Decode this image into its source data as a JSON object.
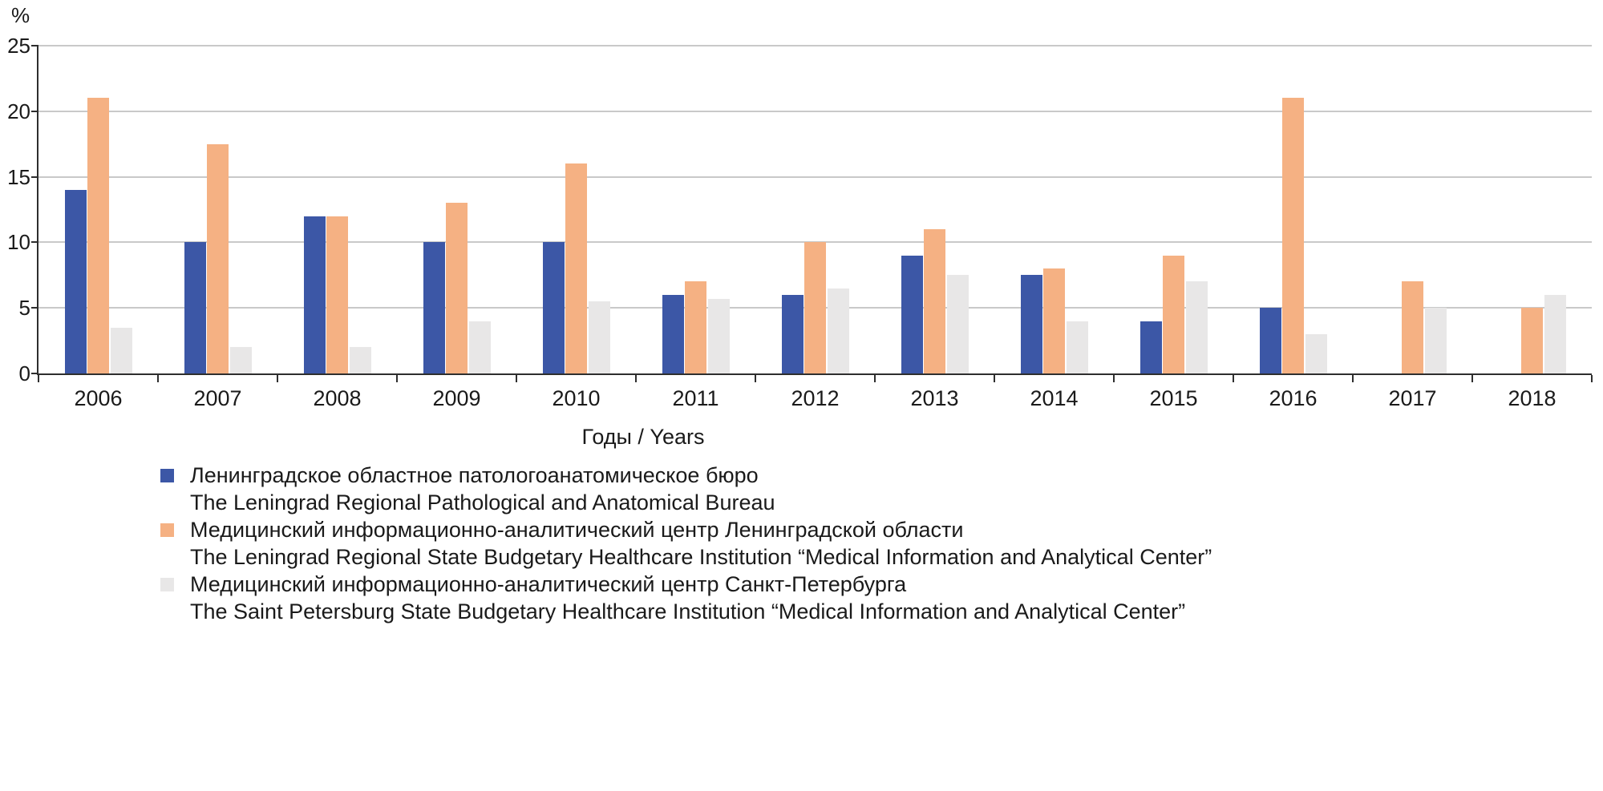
{
  "chart_data": {
    "type": "bar",
    "title": "",
    "ylabel": "%",
    "xlabel": "Годы / Years",
    "ylim": [
      0,
      25
    ],
    "yticks": [
      0,
      5,
      10,
      15,
      20,
      25
    ],
    "grid": true,
    "legend_position": "bottom-left",
    "categories": [
      "2006",
      "2007",
      "2008",
      "2009",
      "2010",
      "2011",
      "2012",
      "2013",
      "2014",
      "2015",
      "2016",
      "2017",
      "2018"
    ],
    "series": [
      {
        "name_ru": "Ленинградское областное патологоанатомическое бюро",
        "name_en": "The Leningrad Regional Pathological and Anatomical Bureau",
        "color": "#3c57a6",
        "values": [
          14,
          10,
          12,
          10,
          10,
          6,
          6,
          9,
          7.5,
          4,
          5,
          0,
          0
        ]
      },
      {
        "name_ru": "Медицинский информационно-аналитический центр Ленинградской области",
        "name_en": "The Leningrad Regional State Budgetary Healthcare Institution “Medical Information and Analytical Center”",
        "color": "#f5b183",
        "values": [
          21,
          17.5,
          12,
          13,
          16,
          7,
          10,
          11,
          8,
          9,
          21,
          7,
          5
        ]
      },
      {
        "name_ru": "Медицинский информационно-аналитический центр Санкт-Петербурга",
        "name_en": "The Saint Petersburg State Budgetary Healthcare Institution “Medical Information and Analytical Center”",
        "color": "#e8e7e7",
        "values": [
          3.5,
          2,
          2,
          4,
          5.5,
          5.7,
          6.5,
          7.5,
          4,
          7,
          3,
          5,
          6
        ]
      }
    ],
    "axis_color": "#2e2e2e",
    "gridline_color": "#c9c9c9"
  }
}
